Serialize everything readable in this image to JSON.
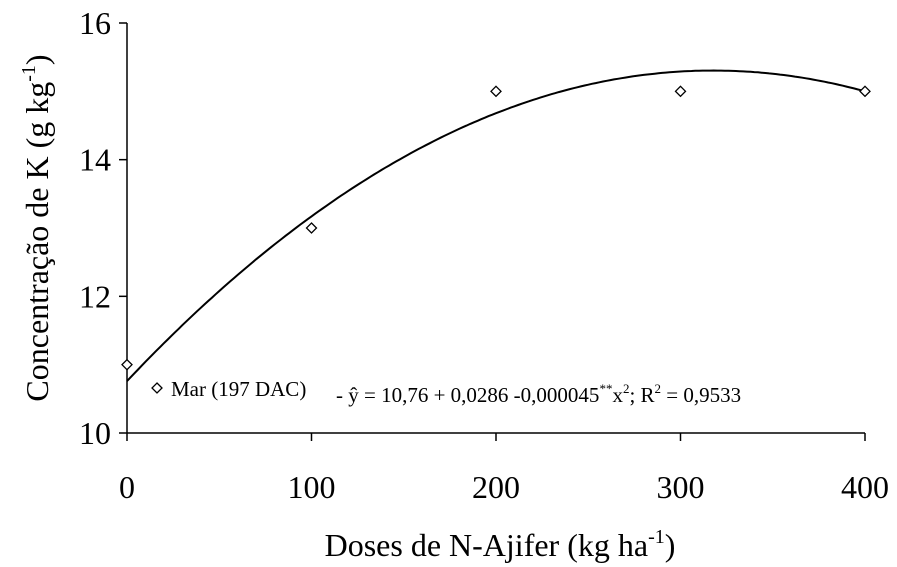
{
  "chart_data": {
    "type": "scatter",
    "title": "",
    "xlabel": "Doses de N-Ajifer (kg ha",
    "xlabel_sup": "-1",
    "xlabel_tail": ")",
    "ylabel": "Concentração de K (g kg",
    "ylabel_sup": "-1",
    "ylabel_tail": ")",
    "xlim": [
      0,
      400
    ],
    "ylim": [
      10,
      16
    ],
    "x_ticks": [
      0,
      100,
      200,
      300,
      400
    ],
    "y_ticks": [
      10,
      12,
      14,
      16
    ],
    "x_tick_labels": [
      "0",
      "100",
      "200",
      "300",
      "400"
    ],
    "y_tick_labels": [
      "10",
      "12",
      "14",
      "16"
    ],
    "grid": false,
    "legend_position": "bottom",
    "series": [
      {
        "name": "Mar (197 DAC)",
        "marker": "diamond-open",
        "x": [
          0,
          100,
          200,
          300,
          400
        ],
        "y": [
          11,
          13,
          15,
          15,
          15
        ]
      }
    ],
    "trendline": {
      "type": "quadratic",
      "coefficients": [
        10.76,
        0.0286,
        -4.5e-05
      ]
    },
    "legend": {
      "series_label": "Mar (197 DAC)",
      "equation_parts": {
        "lead": "- ŷ = 10,76 + 0,0286 -0,000045",
        "sig": "**",
        "x": "x",
        "x_exp": "2",
        "r_text": "; R",
        "r_exp": "2",
        "r_value": " = 0,9533"
      }
    },
    "colors": {
      "axis": "#000000",
      "marker_stroke": "#000000",
      "line": "#000000"
    }
  }
}
